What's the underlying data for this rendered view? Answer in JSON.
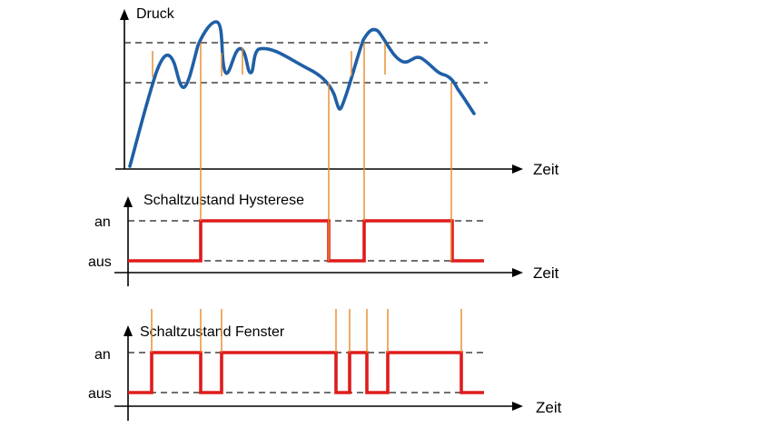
{
  "panel_top": {
    "y_label": "Druck",
    "x_label": "Zeit"
  },
  "panel_hysteresis": {
    "title": "Schaltzustand  Hysterese",
    "level_on": "an",
    "level_off": "aus",
    "x_label": "Zeit"
  },
  "panel_window": {
    "title": "Schaltzustand Fenster",
    "level_on": "an",
    "level_off": "aus",
    "x_label": "Zeit"
  },
  "colors": {
    "pressure_curve": "#1f5fa6",
    "switch_signal": "#e01b1b",
    "event_marker": "#e8892a",
    "axis": "#000000"
  }
}
